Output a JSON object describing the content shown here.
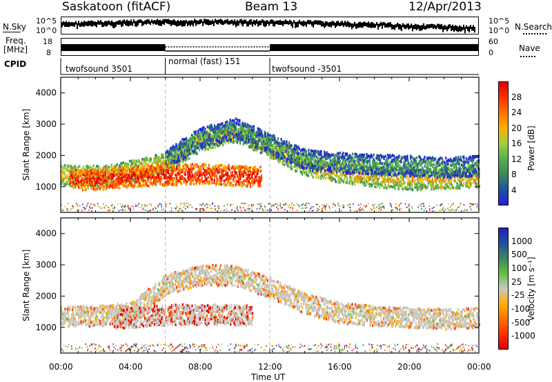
{
  "header": {
    "station": "Saskatoon (fitACF)",
    "beam": "Beam 13",
    "date": "12/Apr/2013"
  },
  "noise_panel": {
    "left_label": "N.Sky",
    "right_label": "N.Search",
    "left_ticks": [
      "10^5",
      "10^0"
    ],
    "right_ticks": [
      "10^5",
      "10^0"
    ]
  },
  "freq_panel": {
    "left_label": "Freq.",
    "left_unit": "[MHz]",
    "right_label": "Nave",
    "left_ticks": [
      "18",
      "8"
    ],
    "right_ticks": [
      "60",
      "0"
    ]
  },
  "cpid": {
    "label": "CPID",
    "segments": [
      {
        "name": "twofsound 3501",
        "start_hour": 0,
        "end_hour": 6
      },
      {
        "name": "normal (fast) 151",
        "start_hour": 6,
        "end_hour": 12
      },
      {
        "name": "twofsound -3501",
        "start_hour": 12,
        "end_hour": 24
      }
    ]
  },
  "time_axis": {
    "label": "Time UT",
    "ticks": [
      "00:00",
      "04:00",
      "08:00",
      "12:00",
      "16:00",
      "20:00",
      "00:00"
    ]
  },
  "colors": {
    "power": [
      "#2020e0",
      "#2050a0",
      "#3a8a5a",
      "#55b050",
      "#a0d040",
      "#ffb000",
      "#ff7000",
      "#ff3000",
      "#e00000"
    ],
    "velocity": [
      "#e00000",
      "#ff3000",
      "#ff7000",
      "#ffb000",
      "#c8c8c0",
      "#60c040",
      "#3a8a5a",
      "#2050a0",
      "#2020c0"
    ]
  },
  "chart_data": [
    {
      "type": "heatmap",
      "name": "power",
      "ylabel": "Slant Range [km]",
      "yticks": [
        1000,
        2000,
        3000,
        4000
      ],
      "ylim": [
        180,
        4500
      ],
      "xlim": [
        0,
        24
      ],
      "colorbar_label": "Power [dB]",
      "colorbar_ticks": [
        4,
        8,
        12,
        16,
        20,
        24,
        28
      ],
      "bands": [
        {
          "x": [
            0,
            2.5,
            4.5,
            6,
            8,
            10,
            12,
            14,
            16,
            18,
            20,
            22,
            24
          ],
          "y": [
            1400,
            1380,
            1600,
            1800,
            2500,
            2800,
            2300,
            1700,
            1500,
            1350,
            1250,
            1300,
            1350
          ],
          "level": 0.62
        },
        {
          "x": [
            6,
            8,
            10,
            12,
            14,
            16,
            18,
            20,
            22,
            24
          ],
          "y": [
            1900,
            2600,
            2900,
            2400,
            1900,
            1800,
            1750,
            1700,
            1650,
            1700
          ],
          "level": 0.35
        },
        {
          "x": [
            0.5,
            2,
            4,
            6,
            8,
            10,
            11.5
          ],
          "y": [
            1300,
            1250,
            1350,
            1400,
            1450,
            1400,
            1350
          ],
          "level": 0.9
        }
      ]
    },
    {
      "type": "heatmap",
      "name": "velocity",
      "ylabel": "Slant Range [km]",
      "yticks": [
        1000,
        2000,
        3000,
        4000
      ],
      "ylim": [
        180,
        4500
      ],
      "xlim": [
        0,
        24
      ],
      "colorbar_label": "Velocity [m s⁻¹]",
      "colorbar_ticks": [
        1000,
        500,
        100,
        25,
        -25,
        -100,
        -500,
        -1000
      ],
      "bands": [
        {
          "x": [
            0,
            2,
            4,
            6,
            8,
            10,
            12,
            14,
            16,
            18,
            20,
            22,
            24
          ],
          "y": [
            1400,
            1400,
            1500,
            2400,
            2700,
            2700,
            2300,
            1800,
            1500,
            1400,
            1350,
            1300,
            1350
          ],
          "level": 0.5
        },
        {
          "x": [
            3,
            5,
            7,
            9,
            11
          ],
          "y": [
            1300,
            1400,
            1450,
            1450,
            1400
          ],
          "level": 0.2
        }
      ]
    }
  ]
}
